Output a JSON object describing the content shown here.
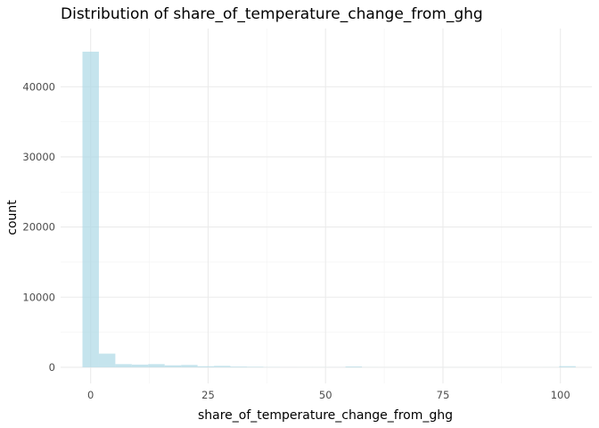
{
  "chart_data": {
    "type": "histogram",
    "title": "Distribution of share_of_temperature_change_from_ghg",
    "xlabel": "share_of_temperature_change_from_ghg",
    "ylabel": "count",
    "xlim": [
      -6.4,
      106.7
    ],
    "ylim": [
      -2300,
      48300
    ],
    "x_ticks": [
      0,
      25,
      50,
      75,
      100
    ],
    "y_ticks": [
      0,
      10000,
      20000,
      30000,
      40000
    ],
    "x_tick_labels": [
      "0",
      "25",
      "50",
      "75",
      "100"
    ],
    "y_tick_labels": [
      "0",
      "10000",
      "20000",
      "30000",
      "40000"
    ],
    "bin_width": 3.5,
    "bins": [
      {
        "x_start": -1.75,
        "x_end": 1.75,
        "count": 45000
      },
      {
        "x_start": 1.75,
        "x_end": 5.25,
        "count": 1950
      },
      {
        "x_start": 5.25,
        "x_end": 8.75,
        "count": 450
      },
      {
        "x_start": 8.75,
        "x_end": 12.25,
        "count": 380
      },
      {
        "x_start": 12.25,
        "x_end": 15.75,
        "count": 450
      },
      {
        "x_start": 15.75,
        "x_end": 19.25,
        "count": 280
      },
      {
        "x_start": 19.25,
        "x_end": 22.75,
        "count": 330
      },
      {
        "x_start": 22.75,
        "x_end": 26.25,
        "count": 150
      },
      {
        "x_start": 26.25,
        "x_end": 29.75,
        "count": 200
      },
      {
        "x_start": 29.75,
        "x_end": 33.25,
        "count": 100
      },
      {
        "x_start": 33.25,
        "x_end": 36.75,
        "count": 70
      },
      {
        "x_start": 36.75,
        "x_end": 40.25,
        "count": 25
      },
      {
        "x_start": 40.25,
        "x_end": 43.75,
        "count": 15
      },
      {
        "x_start": 43.75,
        "x_end": 47.25,
        "count": 10
      },
      {
        "x_start": 47.25,
        "x_end": 50.75,
        "count": 10
      },
      {
        "x_start": 50.75,
        "x_end": 54.25,
        "count": 15
      },
      {
        "x_start": 54.25,
        "x_end": 57.75,
        "count": 110
      },
      {
        "x_start": 57.75,
        "x_end": 61.25,
        "count": 10
      },
      {
        "x_start": 61.25,
        "x_end": 64.75,
        "count": 5
      },
      {
        "x_start": 64.75,
        "x_end": 68.25,
        "count": 5
      },
      {
        "x_start": 68.25,
        "x_end": 71.75,
        "count": 5
      },
      {
        "x_start": 71.75,
        "x_end": 75.25,
        "count": 5
      },
      {
        "x_start": 75.25,
        "x_end": 78.75,
        "count": 5
      },
      {
        "x_start": 78.75,
        "x_end": 82.25,
        "count": 5
      },
      {
        "x_start": 82.25,
        "x_end": 85.75,
        "count": 5
      },
      {
        "x_start": 85.75,
        "x_end": 89.25,
        "count": 5
      },
      {
        "x_start": 89.25,
        "x_end": 92.75,
        "count": 5
      },
      {
        "x_start": 92.75,
        "x_end": 96.25,
        "count": 5
      },
      {
        "x_start": 96.25,
        "x_end": 99.75,
        "count": 10
      },
      {
        "x_start": 99.75,
        "x_end": 103.25,
        "count": 160
      }
    ],
    "bar_fill": "#add8e6",
    "bar_opacity": 0.7,
    "grid": true,
    "legend": "none",
    "theme": "minimal"
  }
}
